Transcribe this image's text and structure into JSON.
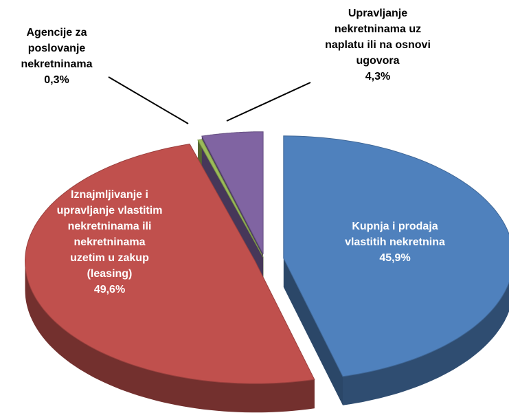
{
  "chart_data": {
    "type": "pie",
    "categories": [
      "Kupnja i prodaja vlastitih nekretnina",
      "Iznajmljivanje i upravljanje vlastitim nekretninama ili nekretninama uzetim u zakup (leasing)",
      "Agencije za poslovanje nekretninama",
      "Upravljanje nekretninama uz naplatu ili na osnovi ugovora"
    ],
    "values": [
      45.9,
      49.6,
      0.3,
      4.3
    ],
    "value_labels": [
      "45,9%",
      "49,6%",
      "0,3%",
      "4,3%"
    ],
    "colors": [
      "#4f81bd",
      "#c0504d",
      "#9bbb59",
      "#8064a2"
    ]
  }
}
